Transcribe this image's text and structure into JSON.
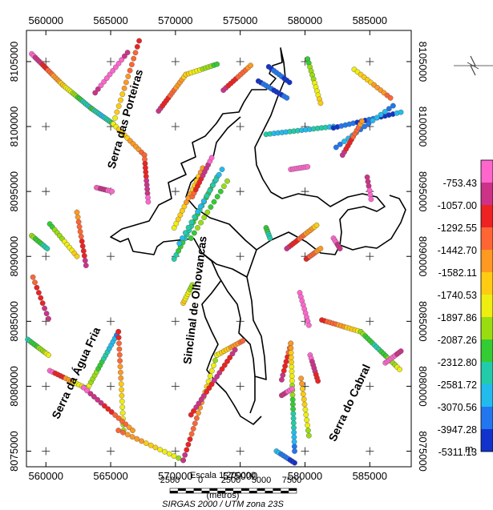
{
  "map": {
    "x_ticks": [
      "560000",
      "565000",
      "570000",
      "575000",
      "580000",
      "585000"
    ],
    "y_ticks": [
      "8105000",
      "8100000",
      "8095000",
      "8090000",
      "8085000",
      "8080000",
      "8075000"
    ],
    "x_range": [
      558500,
      588200
    ],
    "y_range": [
      8073800,
      8107400
    ],
    "features": [
      {
        "name": "Serra das Porteiras",
        "x": 566400,
        "y": 8100500,
        "angle": -74
      },
      {
        "name": "Sinclinal de Olhovancas",
        "x": 571800,
        "y": 8086600,
        "angle": -83
      },
      {
        "name": "Serra da Água Fria",
        "x": 562600,
        "y": 8080900,
        "angle": -65
      },
      {
        "name": "Serra do Cabral",
        "x": 583700,
        "y": 8078600,
        "angle": -65
      }
    ]
  },
  "legend": {
    "values": [
      "-753.43",
      "-1057.00",
      "-1292.55",
      "-1442.70",
      "-1582.11",
      "-1740.53",
      "-1897.86",
      "-2087.26",
      "-2312.80",
      "-2581.72",
      "-3070.56",
      "-3947.28",
      "-5311.13"
    ],
    "colors": [
      "#ff66cc",
      "#cc3388",
      "#ee2222",
      "#ff6633",
      "#ff9922",
      "#ffcc11",
      "#eeee11",
      "#99dd11",
      "#33cc33",
      "#22ccaa",
      "#22bbee",
      "#2277ee",
      "#1133cc"
    ],
    "unit": "m"
  },
  "scale_bar": {
    "title": "Escala 1:200000",
    "labels": [
      "2500",
      "0",
      "2500",
      "5000",
      "7500"
    ],
    "unit": "(metros)",
    "crs": "SIRGAS 2000 / UTM zona 23S"
  },
  "points": [
    {
      "x": [
        558900,
        561300
      ],
      "y": [
        8105600,
        8103200
      ],
      "v": [
        0,
        1,
        2,
        3,
        4,
        5
      ]
    },
    {
      "x": [
        561300,
        563500
      ],
      "y": [
        8103200,
        8101400
      ],
      "v": [
        5,
        6,
        7,
        8,
        9,
        10
      ]
    },
    {
      "x": [
        563500,
        565200
      ],
      "y": [
        8101400,
        8100200
      ],
      "v": [
        8,
        9,
        10,
        9,
        8
      ]
    },
    {
      "x": [
        565200,
        567200
      ],
      "y": [
        8100200,
        8106600
      ],
      "v": [
        6,
        5,
        4,
        3,
        2
      ]
    },
    {
      "x": [
        565200,
        567600
      ],
      "y": [
        8100200,
        8097800
      ],
      "v": [
        6,
        5,
        4,
        3
      ]
    },
    {
      "x": [
        567600,
        567900
      ],
      "y": [
        8097800,
        8094200
      ],
      "v": [
        3,
        2,
        1,
        0
      ]
    },
    {
      "x": [
        563800,
        566300
      ],
      "y": [
        8102600,
        8105700
      ],
      "v": [
        1,
        0,
        0,
        1
      ]
    },
    {
      "x": [
        563900,
        565100
      ],
      "y": [
        8095300,
        8095000
      ],
      "v": [
        0,
        1,
        0
      ]
    },
    {
      "x": [
        558900,
        560100
      ],
      "y": [
        8091600,
        8090600
      ],
      "v": [
        7,
        8,
        9
      ]
    },
    {
      "x": [
        560300,
        562400
      ],
      "y": [
        8092500,
        8090000
      ],
      "v": [
        8,
        7,
        6,
        5
      ]
    },
    {
      "x": [
        562400,
        563100
      ],
      "y": [
        8093400,
        8089300
      ],
      "v": [
        4,
        3,
        2,
        1
      ]
    },
    {
      "x": [
        559000,
        560200
      ],
      "y": [
        8088400,
        8085200
      ],
      "v": [
        3,
        2,
        1
      ]
    },
    {
      "x": [
        558600,
        560200
      ],
      "y": [
        8083600,
        8082400
      ],
      "v": [
        9,
        8,
        7,
        6
      ]
    },
    {
      "x": [
        560300,
        563200
      ],
      "y": [
        8081200,
        8079800
      ],
      "v": [
        0,
        2,
        4,
        6,
        8
      ]
    },
    {
      "x": [
        563200,
        565600
      ],
      "y": [
        8079800,
        8084200
      ],
      "v": [
        6,
        7,
        8,
        9,
        10,
        11
      ]
    },
    {
      "x": [
        565600,
        566000
      ],
      "y": [
        8084200,
        8076600
      ],
      "v": [
        2,
        3,
        4,
        5,
        6,
        7
      ]
    },
    {
      "x": [
        562900,
        566700
      ],
      "y": [
        8079900,
        8076600
      ],
      "v": [
        0,
        1,
        2,
        3,
        4
      ]
    },
    {
      "x": [
        565600,
        570600
      ],
      "y": [
        8076600,
        8074300
      ],
      "v": [
        3,
        4,
        5,
        6,
        7
      ]
    },
    {
      "x": [
        570600,
        573200
      ],
      "y": [
        8074300,
        8082400
      ],
      "v": [
        1,
        2,
        3,
        4,
        5,
        6,
        7
      ]
    },
    {
      "x": [
        573200,
        575200
      ],
      "y": [
        8082400,
        8083500
      ],
      "v": [
        6,
        5,
        4,
        3
      ]
    },
    {
      "x": [
        571200,
        574600
      ],
      "y": [
        8077800,
        8082800
      ],
      "v": [
        2,
        1,
        2,
        1,
        2,
        1
      ]
    },
    {
      "x": [
        570600,
        571300
      ],
      "y": [
        8086400,
        8087800
      ],
      "v": [
        5,
        6,
        7
      ]
    },
    {
      "x": [
        569900,
        573200
      ],
      "y": [
        8089800,
        8096100
      ],
      "v": [
        9,
        8,
        9,
        8,
        9,
        8,
        9
      ]
    },
    {
      "x": [
        570300,
        573600
      ],
      "y": [
        8091000,
        8096700
      ],
      "v": [
        10,
        9,
        10,
        9,
        10
      ]
    },
    {
      "x": [
        569900,
        572100
      ],
      "y": [
        8092200,
        8096800
      ],
      "v": [
        6,
        5,
        4,
        5,
        4
      ]
    },
    {
      "x": [
        571200,
        574000
      ],
      "y": [
        8091400,
        8095800
      ],
      "v": [
        8,
        7,
        8,
        7
      ]
    },
    {
      "x": [
        571300,
        572800
      ],
      "y": [
        8094600,
        8097600
      ],
      "v": [
        3,
        2,
        1,
        0
      ]
    },
    {
      "x": [
        568700,
        570800
      ],
      "y": [
        8101200,
        8104000
      ],
      "v": [
        1,
        2,
        3,
        4,
        5
      ]
    },
    {
      "x": [
        570800,
        573200
      ],
      "y": [
        8104000,
        8104800
      ],
      "v": [
        5,
        6,
        7,
        8
      ]
    },
    {
      "x": [
        573700,
        575800
      ],
      "y": [
        8102800,
        8104700
      ],
      "v": [
        1,
        2,
        3,
        4
      ]
    },
    {
      "x": [
        576400,
        578600
      ],
      "y": [
        8103500,
        8102200
      ],
      "v": [
        12,
        11,
        12,
        11
      ]
    },
    {
      "x": [
        577200,
        578800
      ],
      "y": [
        8104600,
        8103400
      ],
      "v": [
        12,
        11,
        12
      ]
    },
    {
      "x": [
        580200,
        581200
      ],
      "y": [
        8105200,
        8101800
      ],
      "v": [
        8,
        7,
        6,
        5
      ]
    },
    {
      "x": [
        577000,
        582200
      ],
      "y": [
        8099400,
        8100000
      ],
      "v": [
        9,
        10,
        9,
        10,
        9,
        10
      ]
    },
    {
      "x": [
        582200,
        587400
      ],
      "y": [
        8099900,
        8101100
      ],
      "v": [
        12,
        11,
        12,
        11,
        12,
        10
      ]
    },
    {
      "x": [
        582400,
        586800
      ],
      "y": [
        8098400,
        8101600
      ],
      "v": [
        11,
        10,
        11,
        10,
        11
      ]
    },
    {
      "x": [
        583800,
        586600
      ],
      "y": [
        8104400,
        8102200
      ],
      "v": [
        6,
        5,
        4,
        3
      ]
    },
    {
      "x": [
        582900,
        584400
      ],
      "y": [
        8097800,
        8100400
      ],
      "v": [
        1,
        2,
        3,
        4
      ]
    },
    {
      "x": [
        578900,
        580200
      ],
      "y": [
        8096700,
        8096900
      ],
      "v": [
        0,
        0,
        0
      ]
    },
    {
      "x": [
        584800,
        585100
      ],
      "y": [
        8096100,
        8094400
      ],
      "v": [
        1,
        0
      ]
    },
    {
      "x": [
        578600,
        580900
      ],
      "y": [
        8090600,
        8092400
      ],
      "v": [
        1,
        2,
        3,
        4,
        5
      ]
    },
    {
      "x": [
        580100,
        581200
      ],
      "y": [
        8089800,
        8090600
      ],
      "v": [
        2,
        3,
        4
      ]
    },
    {
      "x": [
        579600,
        580300
      ],
      "y": [
        8087200,
        8084700
      ],
      "v": [
        0,
        0,
        0
      ]
    },
    {
      "x": [
        582200,
        582700
      ],
      "y": [
        8091400,
        8090600
      ],
      "v": [
        0,
        1
      ]
    },
    {
      "x": [
        577000,
        577300
      ],
      "y": [
        8092200,
        8091400
      ],
      "v": [
        8,
        9
      ]
    },
    {
      "x": [
        578200,
        578900
      ],
      "y": [
        8080500,
        8083300
      ],
      "v": [
        1,
        2,
        3
      ]
    },
    {
      "x": [
        578900,
        579200
      ],
      "y": [
        8083300,
        8075000
      ],
      "v": [
        4,
        5,
        6,
        7,
        8,
        9,
        10,
        11
      ]
    },
    {
      "x": [
        577800,
        579200
      ],
      "y": [
        8075000,
        8074100
      ],
      "v": [
        10,
        11,
        12
      ]
    },
    {
      "x": [
        579700,
        580300
      ],
      "y": [
        8080600,
        8076200
      ],
      "v": [
        4,
        5,
        6,
        7
      ]
    },
    {
      "x": [
        578200,
        579000
      ],
      "y": [
        8079300,
        8079800
      ],
      "v": [
        1,
        0
      ]
    },
    {
      "x": [
        580400,
        581000
      ],
      "y": [
        8082400,
        8080400
      ],
      "v": [
        0,
        1,
        2
      ]
    },
    {
      "x": [
        581300,
        584300
      ],
      "y": [
        8085100,
        8084200
      ],
      "v": [
        2,
        3,
        4,
        5,
        6
      ]
    },
    {
      "x": [
        584300,
        587300
      ],
      "y": [
        8084200,
        8081300
      ],
      "v": [
        7,
        8,
        9,
        8,
        7,
        6
      ]
    },
    {
      "x": [
        586200,
        587400
      ],
      "y": [
        8081800,
        8082700
      ],
      "v": [
        0,
        0,
        1
      ]
    }
  ]
}
